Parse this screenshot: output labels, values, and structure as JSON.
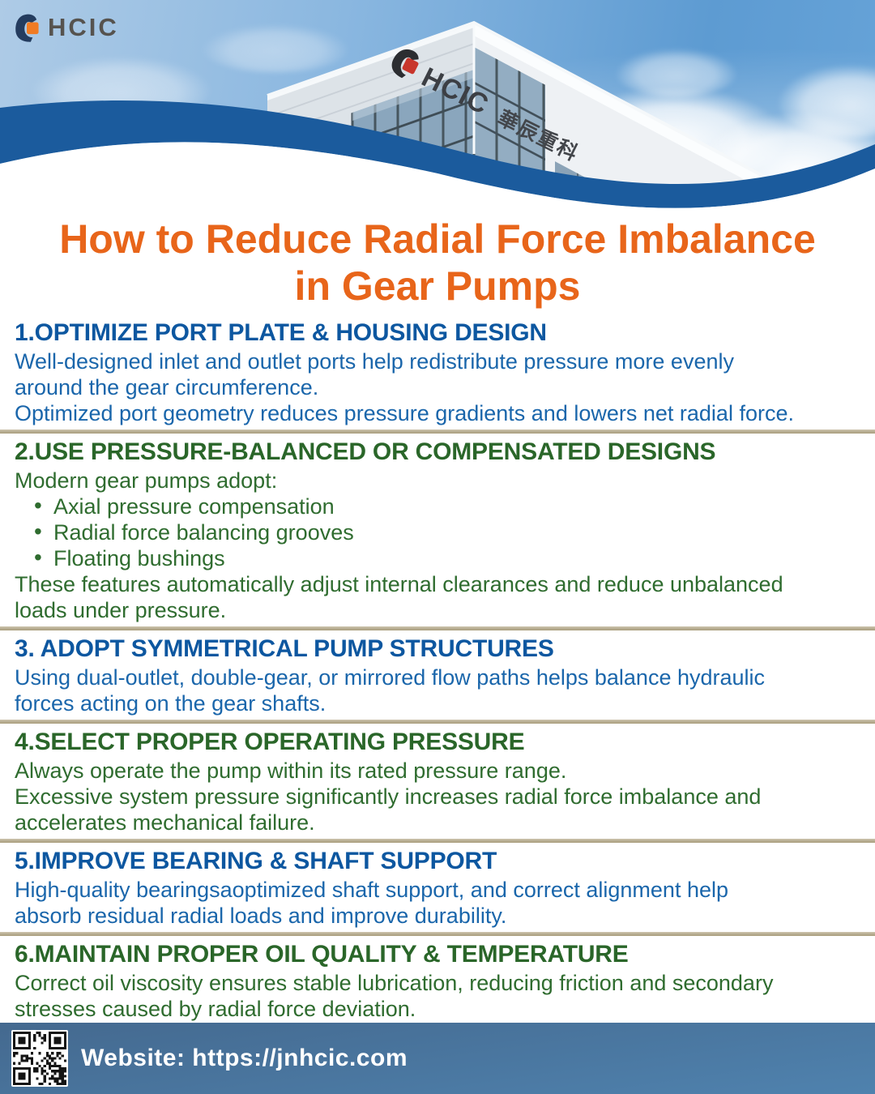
{
  "logo": {
    "text": "HCIC"
  },
  "hero": {
    "building_sign_latin": "HCIC",
    "building_sign_cjk": "華辰重科"
  },
  "title": {
    "line1": "How to Reduce Radial Force Imbalance",
    "line2": "in Gear Pumps"
  },
  "sections": [
    {
      "heading": "1.OPTIMIZE PORT PLATE & HOUSING DESIGN",
      "color": "blue",
      "body": [
        "Well-designed inlet and outlet ports help redistribute pressure more evenly\naround the gear circumference.",
        "Optimized port geometry reduces pressure gradients and lowers net radial force."
      ]
    },
    {
      "heading": "2.USE PRESSURE-BALANCED OR COMPENSATED DESIGNS",
      "color": "green",
      "body": [
        "Modern gear pumps adopt:"
      ],
      "bullets": [
        "Axial pressure compensation",
        "Radial force balancing grooves",
        "Floating bushings"
      ],
      "body2": [
        "These features automatically adjust internal clearances and reduce unbalanced\nloads under pressure."
      ]
    },
    {
      "heading": "3. ADOPT SYMMETRICAL PUMP STRUCTURES",
      "color": "blue",
      "body": [
        "Using dual-outlet, double-gear, or mirrored flow paths helps balance hydraulic\nforces acting on the gear shafts."
      ]
    },
    {
      "heading": "4.SELECT PROPER OPERATING PRESSURE",
      "color": "green",
      "body": [
        "Always operate the pump within its rated pressure range.",
        "Excessive system pressure significantly increases radial force imbalance and\naccelerates mechanical failure."
      ]
    },
    {
      "heading": "5.IMPROVE BEARING & SHAFT SUPPORT",
      "color": "blue",
      "body": [
        "High-quality bearingsaoptimized shaft support, and correct alignment help\nabsorb residual radial loads and improve durability."
      ]
    },
    {
      "heading": "6.MAINTAIN PROPER OIL QUALITY & TEMPERATURE",
      "color": "green",
      "body": [
        "Correct oil viscosity ensures stable lubrication, reducing friction and secondary\nstresses caused by radial force deviation."
      ]
    }
  ],
  "footer": {
    "website": "Website: https://jnhcic.com"
  },
  "colors": {
    "title-orange": "#e8651a",
    "heading-blue": "#0d57a0",
    "body-blue": "#1a66ab",
    "heading-green": "#2a6629",
    "body-green": "#2f6c2f",
    "divider-tan": "#b4a98d",
    "wave-blue": "#1b5b9d",
    "footer-top": "#44698f",
    "footer-bottom": "#4f82ae",
    "logo-navy": "#243c5f",
    "logo-orange": "#f07b24",
    "logo-gray": "#56534f",
    "sign-dark": "#3c3f44",
    "sign-red": "#c8362c"
  }
}
